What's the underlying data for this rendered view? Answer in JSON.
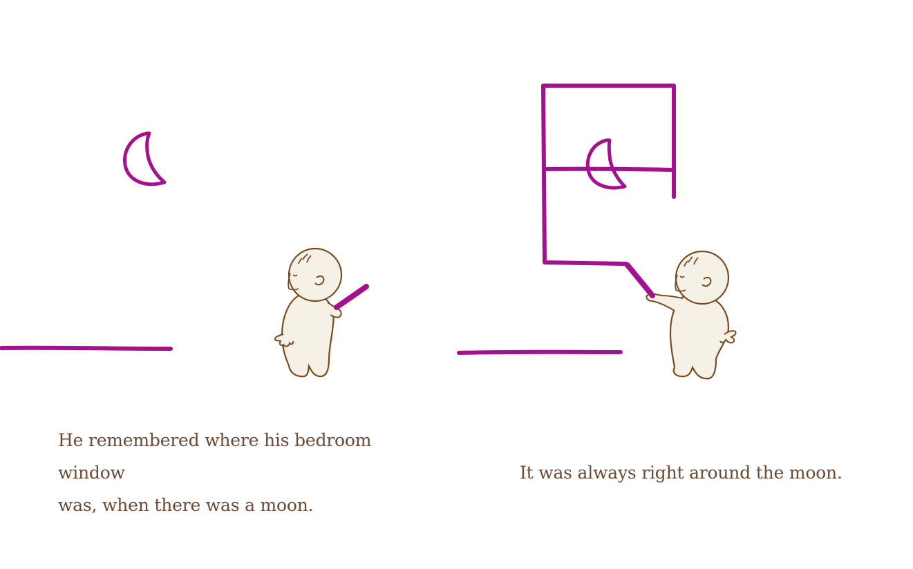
{
  "pages": [
    {
      "caption_line1": "He remembered where his bedroom window",
      "caption_line2": "was, when there was a moon."
    },
    {
      "caption": "It was always right around the moon."
    }
  ],
  "colors": {
    "crayon": "#a3118f",
    "ink": "#6b4a34",
    "skin": "#f6f1e7",
    "outline": "#7a4a1e"
  },
  "icons": {
    "moon": "crescent-moon-icon",
    "boy": "boy-figure",
    "crayon": "purple-crayon-icon"
  }
}
